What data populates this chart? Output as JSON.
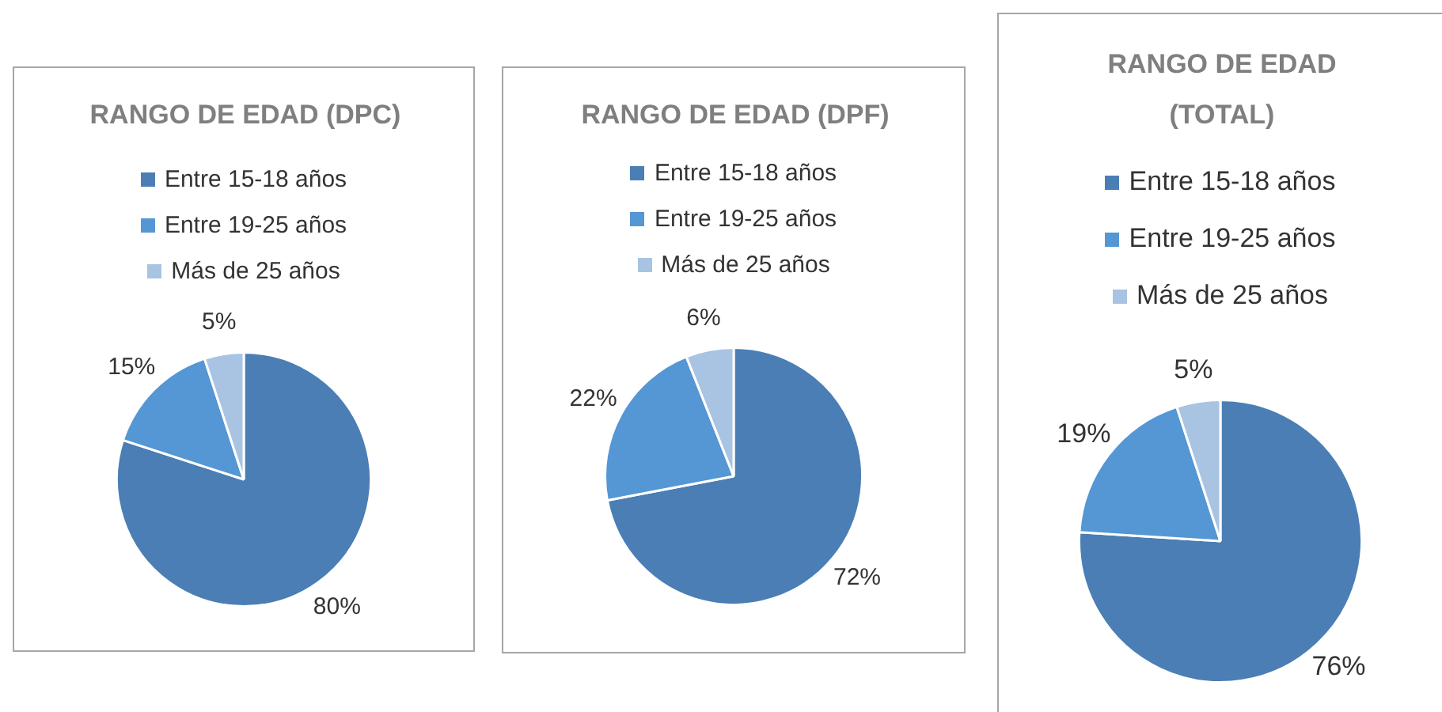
{
  "chart_data": [
    {
      "type": "pie",
      "title": "RANGO DE EDAD (DPC)",
      "categories": [
        "Entre 15-18 años",
        "Entre 19-25 años",
        "Más de 25 años"
      ],
      "values": [
        80,
        15,
        5
      ],
      "colors": [
        "#4a7eb4",
        "#5596d4",
        "#a9c3e2"
      ],
      "value_labels": [
        "80%",
        "15%",
        "5%"
      ],
      "legend": "top"
    },
    {
      "type": "pie",
      "title": "RANGO DE EDAD (DPF)",
      "categories": [
        "Entre 15-18 años",
        "Entre 19-25 años",
        "Más de 25 años"
      ],
      "values": [
        72,
        22,
        6
      ],
      "colors": [
        "#4a7eb4",
        "#5596d4",
        "#a9c3e2"
      ],
      "value_labels": [
        "72%",
        "22%",
        "6%"
      ],
      "legend": "top"
    },
    {
      "type": "pie",
      "title": "RANGO DE EDAD (TOTAL)",
      "categories": [
        "Entre 15-18 años",
        "Entre 19-25 años",
        "Más de 25 años"
      ],
      "values": [
        76,
        19,
        5
      ],
      "colors": [
        "#4a7eb4",
        "#5596d4",
        "#a9c3e2"
      ],
      "value_labels": [
        "76%",
        "19%",
        "5%"
      ],
      "legend": "top"
    }
  ]
}
